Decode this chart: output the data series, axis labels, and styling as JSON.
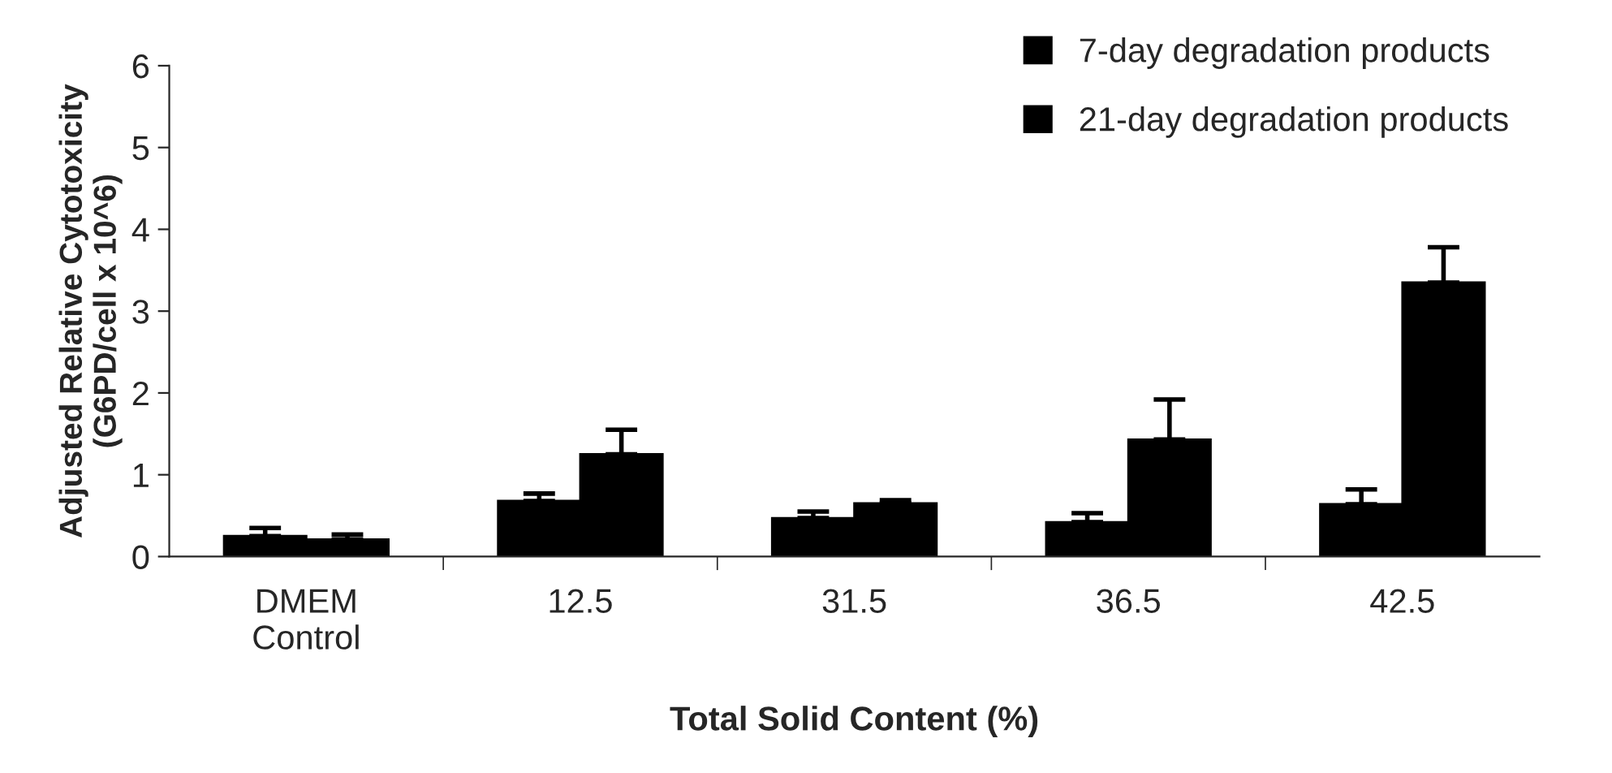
{
  "chart_data": {
    "type": "bar",
    "xlabel": "Total Solid Content (%)",
    "ylabel": "Adjusted Relative Cytotoxicity\n(G6PD/cell x 10^6)",
    "categories": [
      "DMEM\nControl",
      "12.5",
      "31.5",
      "36.5",
      "42.5"
    ],
    "series": [
      {
        "name": "7-day degradation products",
        "color": "#000000",
        "values": [
          0.25,
          0.68,
          0.47,
          0.42,
          0.64
        ],
        "errors": [
          [
            0.25,
            0.35
          ],
          [
            0.68,
            0.77
          ],
          [
            0.47,
            0.55
          ],
          [
            0.42,
            0.53
          ],
          [
            0.64,
            0.82
          ]
        ]
      },
      {
        "name": "21-day degradation products",
        "color": "#000000",
        "values": [
          0.21,
          1.25,
          0.65,
          1.43,
          3.35
        ],
        "errors": [
          [
            0.21,
            0.27
          ],
          [
            1.25,
            1.55
          ],
          [
            0.65,
            0.69
          ],
          [
            1.43,
            1.92
          ],
          [
            3.35,
            3.78
          ]
        ]
      }
    ],
    "ylim": [
      0,
      6
    ],
    "yticks": [
      0,
      1,
      2,
      3,
      4,
      5,
      6
    ],
    "grid": false,
    "legend": "top right"
  }
}
